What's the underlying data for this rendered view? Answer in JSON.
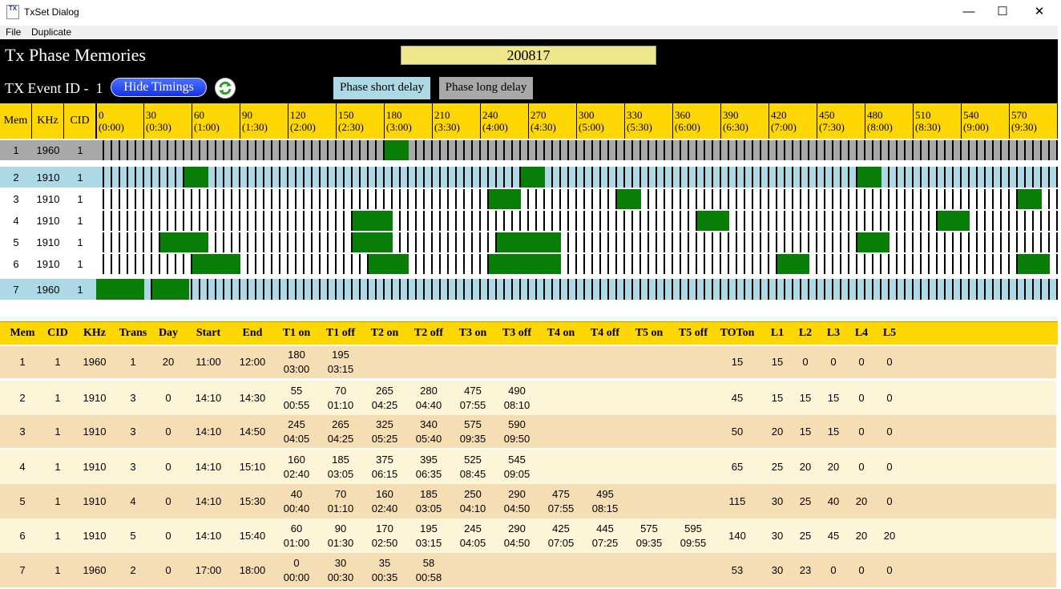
{
  "window": {
    "title": "TxSet Dialog",
    "icon_text": "TX",
    "controls": [
      "minimize-icon",
      "maximize-icon",
      "close-icon"
    ]
  },
  "menu": {
    "items": [
      "File",
      "Duplicate"
    ]
  },
  "header": {
    "title": "Tx Phase Memories",
    "date_value": "200817",
    "event_label": "TX Event ID -",
    "event_id": "1",
    "hide_timings_label": "Hide Timings",
    "phase_short_label": "Phase short delay",
    "phase_long_label": "Phase long delay"
  },
  "colors": {
    "header_yellow": "#ffd700",
    "block_green": "#087d08",
    "row_grey": "#a9a9a9",
    "row_blue": "#add8e6",
    "table_tan": "#f5deb3",
    "table_cream": "#fdf5d8",
    "phase_short_bg": "#add8e6",
    "phase_long_bg": "#a9a9a9",
    "date_bg": "#f0e68c"
  },
  "timeline": {
    "columns": [
      "Mem",
      "KHz",
      "CID"
    ],
    "minutes_per_tick": 5,
    "ticks": [
      {
        "min": "0",
        "time": "(0:00)"
      },
      {
        "min": "30",
        "time": "(0:30)"
      },
      {
        "min": "60",
        "time": "(1:00)"
      },
      {
        "min": "90",
        "time": "(1:30)"
      },
      {
        "min": "120",
        "time": "(2:00)"
      },
      {
        "min": "150",
        "time": "(2:30)"
      },
      {
        "min": "180",
        "time": "(3:00)"
      },
      {
        "min": "210",
        "time": "(3:30)"
      },
      {
        "min": "240",
        "time": "(4:00)"
      },
      {
        "min": "270",
        "time": "(4:30)"
      },
      {
        "min": "300",
        "time": "(5:00)"
      },
      {
        "min": "330",
        "time": "(5:30)"
      },
      {
        "min": "360",
        "time": "(6:00)"
      },
      {
        "min": "390",
        "time": "(6:30)"
      },
      {
        "min": "420",
        "time": "(7:00)"
      },
      {
        "min": "450",
        "time": "(7:30)"
      },
      {
        "min": "480",
        "time": "(8:00)"
      },
      {
        "min": "510",
        "time": "(8:30)"
      },
      {
        "min": "540",
        "time": "(9:00)"
      },
      {
        "min": "570",
        "time": "(9:30)"
      }
    ],
    "rows": [
      {
        "mem": "1",
        "khz": "1960",
        "cid": "1",
        "bg": "#a9a9a9",
        "on": [
          [
            180,
            195
          ]
        ]
      },
      {
        "mem": "2",
        "khz": "1910",
        "cid": "1",
        "bg": "#add8e6",
        "on": [
          [
            55,
            70
          ],
          [
            265,
            280
          ],
          [
            475,
            490
          ]
        ]
      },
      {
        "mem": "3",
        "khz": "1910",
        "cid": "1",
        "bg": "#ffffff",
        "on": [
          [
            245,
            265
          ],
          [
            325,
            340
          ],
          [
            575,
            590
          ]
        ]
      },
      {
        "mem": "4",
        "khz": "1910",
        "cid": "1",
        "bg": "#ffffff",
        "on": [
          [
            160,
            185
          ],
          [
            375,
            395
          ],
          [
            525,
            545
          ]
        ]
      },
      {
        "mem": "5",
        "khz": "1910",
        "cid": "1",
        "bg": "#ffffff",
        "on": [
          [
            40,
            70
          ],
          [
            160,
            185
          ],
          [
            250,
            290
          ],
          [
            475,
            495
          ]
        ]
      },
      {
        "mem": "6",
        "khz": "1910",
        "cid": "1",
        "bg": "#ffffff",
        "on": [
          [
            60,
            90
          ],
          [
            170,
            195
          ],
          [
            245,
            290
          ],
          [
            425,
            445
          ],
          [
            575,
            595
          ]
        ]
      },
      {
        "mem": "7",
        "khz": "1960",
        "cid": "1",
        "bg": "#add8e6",
        "on": [
          [
            0,
            30
          ],
          [
            35,
            58
          ]
        ]
      }
    ]
  },
  "table": {
    "headers": [
      "Mem",
      "CID",
      "KHz",
      "Trans",
      "Day",
      "Start",
      "End",
      "T1 on",
      "T1 off",
      "T2 on",
      "T2 off",
      "T3 on",
      "T3 off",
      "T4 on",
      "T4 off",
      "T5 on",
      "T5 off",
      "TOTon",
      "L1",
      "L2",
      "L3",
      "L4",
      "L5"
    ],
    "rows": [
      {
        "mem": "1",
        "cid": "1",
        "khz": "1960",
        "trans": "1",
        "day": "20",
        "start": "11:00",
        "end": "12:00",
        "t": [
          [
            "180",
            "03:00"
          ],
          [
            "195",
            "03:15"
          ],
          [
            "",
            ""
          ],
          [
            "",
            ""
          ],
          [
            "",
            ""
          ],
          [
            "",
            ""
          ],
          [
            "",
            ""
          ],
          [
            "",
            ""
          ],
          [
            "",
            ""
          ],
          [
            "",
            ""
          ]
        ],
        "toton": "15",
        "l": [
          "15",
          "0",
          "0",
          "0",
          "0"
        ]
      },
      {
        "mem": "2",
        "cid": "1",
        "khz": "1910",
        "trans": "3",
        "day": "0",
        "start": "14:10",
        "end": "14:30",
        "t": [
          [
            "55",
            "00:55"
          ],
          [
            "70",
            "01:10"
          ],
          [
            "265",
            "04:25"
          ],
          [
            "280",
            "04:40"
          ],
          [
            "475",
            "07:55"
          ],
          [
            "490",
            "08:10"
          ],
          [
            "",
            ""
          ],
          [
            "",
            ""
          ],
          [
            "",
            ""
          ],
          [
            "",
            ""
          ]
        ],
        "toton": "45",
        "l": [
          "15",
          "15",
          "15",
          "0",
          "0"
        ]
      },
      {
        "mem": "3",
        "cid": "1",
        "khz": "1910",
        "trans": "3",
        "day": "0",
        "start": "14:10",
        "end": "14:50",
        "t": [
          [
            "245",
            "04:05"
          ],
          [
            "265",
            "04:25"
          ],
          [
            "325",
            "05:25"
          ],
          [
            "340",
            "05:40"
          ],
          [
            "575",
            "09:35"
          ],
          [
            "590",
            "09:50"
          ],
          [
            "",
            ""
          ],
          [
            "",
            ""
          ],
          [
            "",
            ""
          ],
          [
            "",
            ""
          ]
        ],
        "toton": "50",
        "l": [
          "20",
          "15",
          "15",
          "0",
          "0"
        ]
      },
      {
        "mem": "4",
        "cid": "1",
        "khz": "1910",
        "trans": "3",
        "day": "0",
        "start": "14:10",
        "end": "15:10",
        "t": [
          [
            "160",
            "02:40"
          ],
          [
            "185",
            "03:05"
          ],
          [
            "375",
            "06:15"
          ],
          [
            "395",
            "06:35"
          ],
          [
            "525",
            "08:45"
          ],
          [
            "545",
            "09:05"
          ],
          [
            "",
            ""
          ],
          [
            "",
            ""
          ],
          [
            "",
            ""
          ],
          [
            "",
            ""
          ]
        ],
        "toton": "65",
        "l": [
          "25",
          "20",
          "20",
          "0",
          "0"
        ]
      },
      {
        "mem": "5",
        "cid": "1",
        "khz": "1910",
        "trans": "4",
        "day": "0",
        "start": "14:10",
        "end": "15:30",
        "t": [
          [
            "40",
            "00:40"
          ],
          [
            "70",
            "01:10"
          ],
          [
            "160",
            "02:40"
          ],
          [
            "185",
            "03:05"
          ],
          [
            "250",
            "04:10"
          ],
          [
            "290",
            "04:50"
          ],
          [
            "475",
            "07:55"
          ],
          [
            "495",
            "08:15"
          ],
          [
            "",
            ""
          ],
          [
            "",
            ""
          ]
        ],
        "toton": "115",
        "l": [
          "30",
          "25",
          "40",
          "20",
          "0"
        ]
      },
      {
        "mem": "6",
        "cid": "1",
        "khz": "1910",
        "trans": "5",
        "day": "0",
        "start": "14:10",
        "end": "15:40",
        "t": [
          [
            "60",
            "01:00"
          ],
          [
            "90",
            "01:30"
          ],
          [
            "170",
            "02:50"
          ],
          [
            "195",
            "03:15"
          ],
          [
            "245",
            "04:05"
          ],
          [
            "290",
            "04:50"
          ],
          [
            "425",
            "07:05"
          ],
          [
            "445",
            "07:25"
          ],
          [
            "575",
            "09:35"
          ],
          [
            "595",
            "09:55"
          ]
        ],
        "toton": "140",
        "l": [
          "30",
          "25",
          "45",
          "20",
          "20"
        ]
      },
      {
        "mem": "7",
        "cid": "1",
        "khz": "1960",
        "trans": "2",
        "day": "0",
        "start": "17:00",
        "end": "18:00",
        "t": [
          [
            "0",
            "00:00"
          ],
          [
            "30",
            "00:30"
          ],
          [
            "35",
            "00:35"
          ],
          [
            "58",
            "00:58"
          ],
          [
            "",
            ""
          ],
          [
            "",
            ""
          ],
          [
            "",
            ""
          ],
          [
            "",
            ""
          ],
          [
            "",
            ""
          ],
          [
            "",
            ""
          ]
        ],
        "toton": "53",
        "l": [
          "30",
          "23",
          "0",
          "0",
          "0"
        ]
      }
    ]
  }
}
